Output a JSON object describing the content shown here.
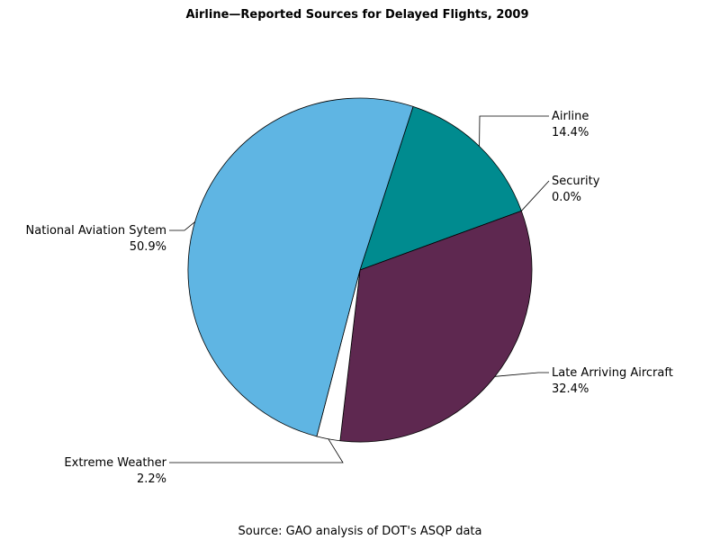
{
  "chart_data": {
    "type": "pie",
    "title": "Airline—Reported Sources for Delayed Flights, 2009",
    "footnote": "Source: GAO analysis of DOT's ASQP data",
    "slices": [
      {
        "label": "Airline",
        "value_text": "14.4%",
        "value": 14.4,
        "color": "#008b8f"
      },
      {
        "label": "Security",
        "value_text": "0.0%",
        "value": 0.0,
        "color": "#7a1f3d"
      },
      {
        "label": "Late Arriving Aircraft",
        "value_text": "32.4%",
        "value": 32.4,
        "color": "#5e2850"
      },
      {
        "label": "Extreme Weather",
        "value_text": "2.2%",
        "value": 2.2,
        "color": "#ffffff"
      },
      {
        "label": "National Aviation Sytem",
        "value_text": "50.9%",
        "value": 50.9,
        "color": "#5fb5e3"
      }
    ]
  }
}
